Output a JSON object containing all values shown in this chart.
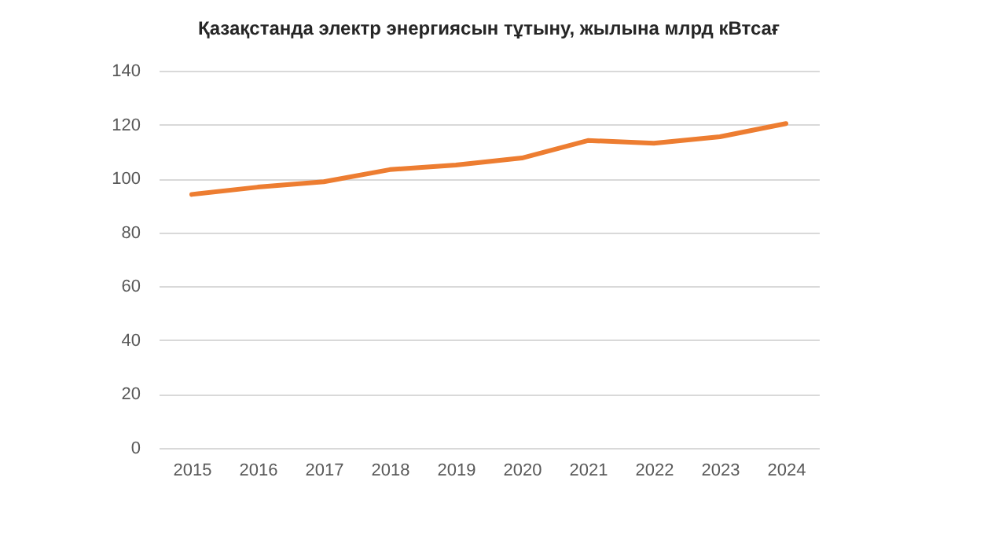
{
  "chart_data": {
    "type": "line",
    "title": "Қазақстанда электр энергиясын тұтыну, жылына млрд кВтсағ",
    "categories": [
      "2015",
      "2016",
      "2017",
      "2018",
      "2019",
      "2020",
      "2021",
      "2022",
      "2023",
      "2024"
    ],
    "series": [
      {
        "color": "#ed7d31",
        "values": [
          94.1,
          96.8,
          98.8,
          103.3,
          105.0,
          107.6,
          114.1,
          113.1,
          115.5,
          120.4
        ]
      }
    ],
    "ylim": [
      0,
      140
    ],
    "yticks": [
      0,
      20,
      40,
      60,
      80,
      100,
      120,
      140
    ],
    "grid": "y",
    "marker": "none",
    "line_style": "solid"
  }
}
